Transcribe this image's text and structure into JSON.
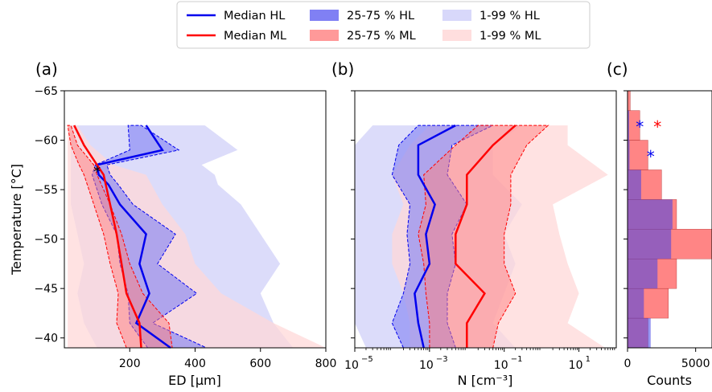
{
  "colors": {
    "hl": "#0000ee",
    "ml": "#ff0000",
    "hl_iqr": "#8080f4",
    "ml_iqr": "#ff8080",
    "hl_outer": "#d8d8fa",
    "ml_outer": "#ffd8d8"
  },
  "legend": {
    "items": [
      {
        "label": "Median HL",
        "kind": "line",
        "color": "#0000ee"
      },
      {
        "label": "25-75 % HL",
        "kind": "patch",
        "color": "#8080f4"
      },
      {
        "label": "1-99 % HL",
        "kind": "patch",
        "color": "#d8d8fa"
      },
      {
        "label": "Median ML",
        "kind": "line",
        "color": "#ff0000"
      },
      {
        "label": "25-75 % ML",
        "kind": "patch",
        "color": "#ff9999"
      },
      {
        "label": "1-99 % ML",
        "kind": "patch",
        "color": "#ffdede"
      }
    ]
  },
  "chart_data": [
    {
      "type": "line",
      "panel_label": "(a)",
      "xlabel": "ED [μm]",
      "ylabel": "Temperature [°C]",
      "xlim": [
        0,
        800
      ],
      "ylim": [
        -39,
        -65
      ],
      "x_ticks": [
        200,
        400,
        600,
        800
      ],
      "x_tick_labels": [
        "200",
        "400",
        "600",
        "800"
      ],
      "y_ticks": [
        -65,
        -60,
        -55,
        -50,
        -45,
        -40
      ],
      "y_tick_labels": [
        "−65",
        "−60",
        "−55",
        "−50",
        "−45",
        "−40"
      ],
      "temperature": [
        -38.5,
        -41.5,
        -44.5,
        -47.5,
        -50.5,
        -53.5,
        -56.5,
        -59.5,
        -61.5
      ],
      "series": [
        {
          "name": "Median HL",
          "values": [
            325,
            220,
            260,
            230,
            250,
            170,
            135,
            105,
            100,
            300,
            250
          ]
        },
        {
          "name": "Median ML",
          "values": [
            235,
            230,
            190,
            175,
            160,
            140,
            120,
            100,
            60,
            30
          ]
        }
      ],
      "temperature_hl": [
        -39,
        -41.5,
        -44.5,
        -47.5,
        -50.5,
        -53.5,
        -55.5,
        -56.5,
        -57.5,
        -59,
        -61.5
      ],
      "temperature_ml": [
        -39,
        -41.5,
        -44.5,
        -47.5,
        -50.5,
        -53.5,
        -56.5,
        -57.5,
        -59.5,
        -61.5
      ],
      "hl_p25": [
        255,
        200,
        195,
        170,
        160,
        115,
        95,
        85,
        95,
        200,
        195
      ],
      "hl_p75": [
        435,
        270,
        405,
        285,
        340,
        210,
        165,
        140,
        130,
        350,
        235
      ],
      "hl_p01": [
        100,
        60,
        40,
        60,
        40,
        20,
        20,
        20,
        20,
        20,
        20
      ],
      "hl_p99": [
        700,
        640,
        600,
        660,
        600,
        540,
        470,
        460,
        420,
        530,
        430
      ],
      "ml_p25": [
        190,
        160,
        165,
        140,
        120,
        90,
        60,
        45,
        20,
        10
      ],
      "ml_p75": [
        330,
        320,
        240,
        200,
        175,
        140,
        100,
        90,
        40,
        20
      ],
      "ml_p01": [
        10,
        10,
        10,
        10,
        10,
        10,
        10,
        10,
        10,
        10
      ],
      "ml_p99": [
        800,
        640,
        480,
        400,
        370,
        300,
        250,
        150,
        80,
        40
      ],
      "annotation_marker": {
        "text": "*",
        "x": 100,
        "y": -57
      }
    },
    {
      "type": "line",
      "panel_label": "(b)",
      "xlabel": "N [cm⁻³]",
      "xscale": "log",
      "xlim": [
        1e-05,
        100
      ],
      "ylim": [
        -39,
        -65
      ],
      "x_ticks": [
        1e-05,
        0.001,
        0.1,
        10
      ],
      "x_tick_labels": [
        "10",
        "10",
        "10",
        "10"
      ],
      "x_tick_exponents": [
        "−5",
        "−3",
        "−1",
        "1"
      ],
      "temperature": [
        -39,
        -41.5,
        -44.5,
        -47.5,
        -50.5,
        -53.5,
        -56.5,
        -59.5,
        -61.5
      ],
      "series": [
        {
          "name": "Median HL",
          "values": [
            0.0007,
            0.0005,
            0.0004,
            0.001,
            0.0008,
            0.0014,
            0.0005,
            0.0005,
            0.005
          ]
        },
        {
          "name": "Median ML",
          "values": [
            0.01,
            0.01,
            0.03,
            0.005,
            0.005,
            0.01,
            0.01,
            0.05,
            0.2
          ]
        }
      ],
      "hl_p25": [
        0.0002,
        0.0001,
        0.0002,
        0.0003,
        0.00025,
        0.0003,
        0.0001,
        0.00015,
        0.0005
      ],
      "hl_p75": [
        0.005,
        0.003,
        0.003,
        0.005,
        0.004,
        0.01,
        0.003,
        0.004,
        0.05
      ],
      "hl_p01": [
        2e-05,
        1e-05,
        1e-05,
        1e-05,
        1e-05,
        1e-05,
        1e-05,
        1e-05,
        3e-05
      ],
      "hl_p99": [
        0.2,
        0.05,
        0.1,
        0.2,
        0.1,
        0.3,
        0.05,
        0.05,
        0.3
      ],
      "ml_p25": [
        0.001,
        0.001,
        0.0008,
        0.0007,
        0.0005,
        0.0008,
        0.0007,
        0.005,
        0.02
      ],
      "ml_p75": [
        0.05,
        0.07,
        0.2,
        0.1,
        0.1,
        0.15,
        0.15,
        0.4,
        1.5
      ],
      "ml_p01": [
        0.0003,
        0.0003,
        0.0002,
        0.0001,
        0.0001,
        0.0002,
        0.0001,
        0.0003,
        0.001
      ],
      "ml_p99": [
        50,
        5,
        10,
        5,
        3,
        2,
        60,
        5,
        5
      ]
    },
    {
      "type": "bar",
      "orientation": "horizontal",
      "panel_label": "(c)",
      "xlabel": "Counts",
      "xlim": [
        0,
        6200
      ],
      "ylim": [
        -39,
        -65
      ],
      "x_ticks": [
        0,
        5000
      ],
      "x_tick_labels": [
        "0",
        "5000"
      ],
      "bin_edges": [
        -39,
        -42,
        -45,
        -48,
        -51,
        -54,
        -57,
        -60,
        -63
      ],
      "series": [
        {
          "name": "HL",
          "values": [
            1700,
            1200,
            2200,
            3200,
            3300,
            1000,
            150,
            120
          ]
        },
        {
          "name": "ML",
          "values": [
            1500,
            3000,
            3600,
            6200,
            3600,
            2500,
            1500,
            900,
            200
          ]
        }
      ],
      "bin_edges_ml": [
        -39,
        -42,
        -45,
        -48,
        -51,
        -54,
        -57,
        -60,
        -63,
        -65
      ],
      "markers": [
        {
          "text": "*",
          "color": "#0000ee",
          "x": 900,
          "y": -61.5
        },
        {
          "text": "*",
          "color": "#ff0000",
          "x": 2200,
          "y": -61.5
        },
        {
          "text": "*",
          "color": "#0000ee",
          "x": 1700,
          "y": -58.5
        }
      ]
    }
  ]
}
